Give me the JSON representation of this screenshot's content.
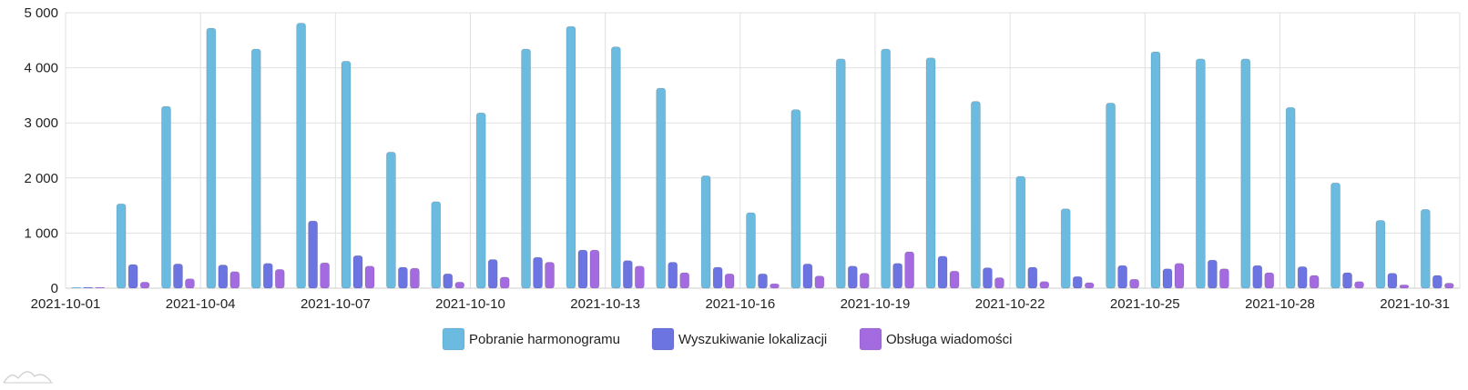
{
  "chart_data": {
    "type": "bar",
    "ylim": [
      0,
      5000
    ],
    "yticks": [
      0,
      1000,
      2000,
      3000,
      4000,
      5000
    ],
    "ytick_labels": [
      "0",
      "1 000",
      "2 000",
      "3 000",
      "4 000",
      "5 000"
    ],
    "grid": true,
    "legend_position": "bottom",
    "categories": [
      "2021-10-01",
      "2021-10-02",
      "2021-10-03",
      "2021-10-04",
      "2021-10-05",
      "2021-10-06",
      "2021-10-07",
      "2021-10-08",
      "2021-10-09",
      "2021-10-10",
      "2021-10-11",
      "2021-10-12",
      "2021-10-13",
      "2021-10-14",
      "2021-10-15",
      "2021-10-16",
      "2021-10-17",
      "2021-10-18",
      "2021-10-19",
      "2021-10-20",
      "2021-10-21",
      "2021-10-22",
      "2021-10-23",
      "2021-10-24",
      "2021-10-25",
      "2021-10-26",
      "2021-10-27",
      "2021-10-28",
      "2021-10-29",
      "2021-10-30",
      "2021-10-31"
    ],
    "xtick_labels": [
      "2021-10-01",
      "2021-10-04",
      "2021-10-07",
      "2021-10-10",
      "2021-10-13",
      "2021-10-16",
      "2021-10-19",
      "2021-10-22",
      "2021-10-25",
      "2021-10-28",
      "2021-10-31"
    ],
    "series": [
      {
        "name": "Pobranie harmonogramu",
        "color": "#6bbbe0",
        "values": [
          0,
          1530,
          3300,
          4720,
          4340,
          4810,
          4120,
          2470,
          1570,
          3180,
          4340,
          4750,
          4380,
          3630,
          2040,
          1370,
          3240,
          4160,
          4340,
          4180,
          3390,
          2030,
          1440,
          3360,
          4290,
          4160,
          4160,
          3280,
          1910,
          1230,
          1430
        ]
      },
      {
        "name": "Wyszukiwanie lokalizacji",
        "color": "#6b74e0",
        "values": [
          0,
          430,
          440,
          420,
          450,
          1220,
          590,
          380,
          260,
          520,
          560,
          690,
          500,
          470,
          380,
          260,
          440,
          400,
          450,
          580,
          370,
          380,
          210,
          410,
          350,
          510,
          410,
          390,
          280,
          270,
          230
        ]
      },
      {
        "name": "Obsługa wiadomości",
        "color": "#a46be0",
        "values": [
          0,
          110,
          170,
          300,
          340,
          460,
          400,
          360,
          110,
          200,
          470,
          690,
          400,
          280,
          260,
          80,
          220,
          270,
          660,
          310,
          190,
          120,
          100,
          160,
          450,
          350,
          280,
          230,
          120,
          60,
          90
        ]
      }
    ]
  }
}
